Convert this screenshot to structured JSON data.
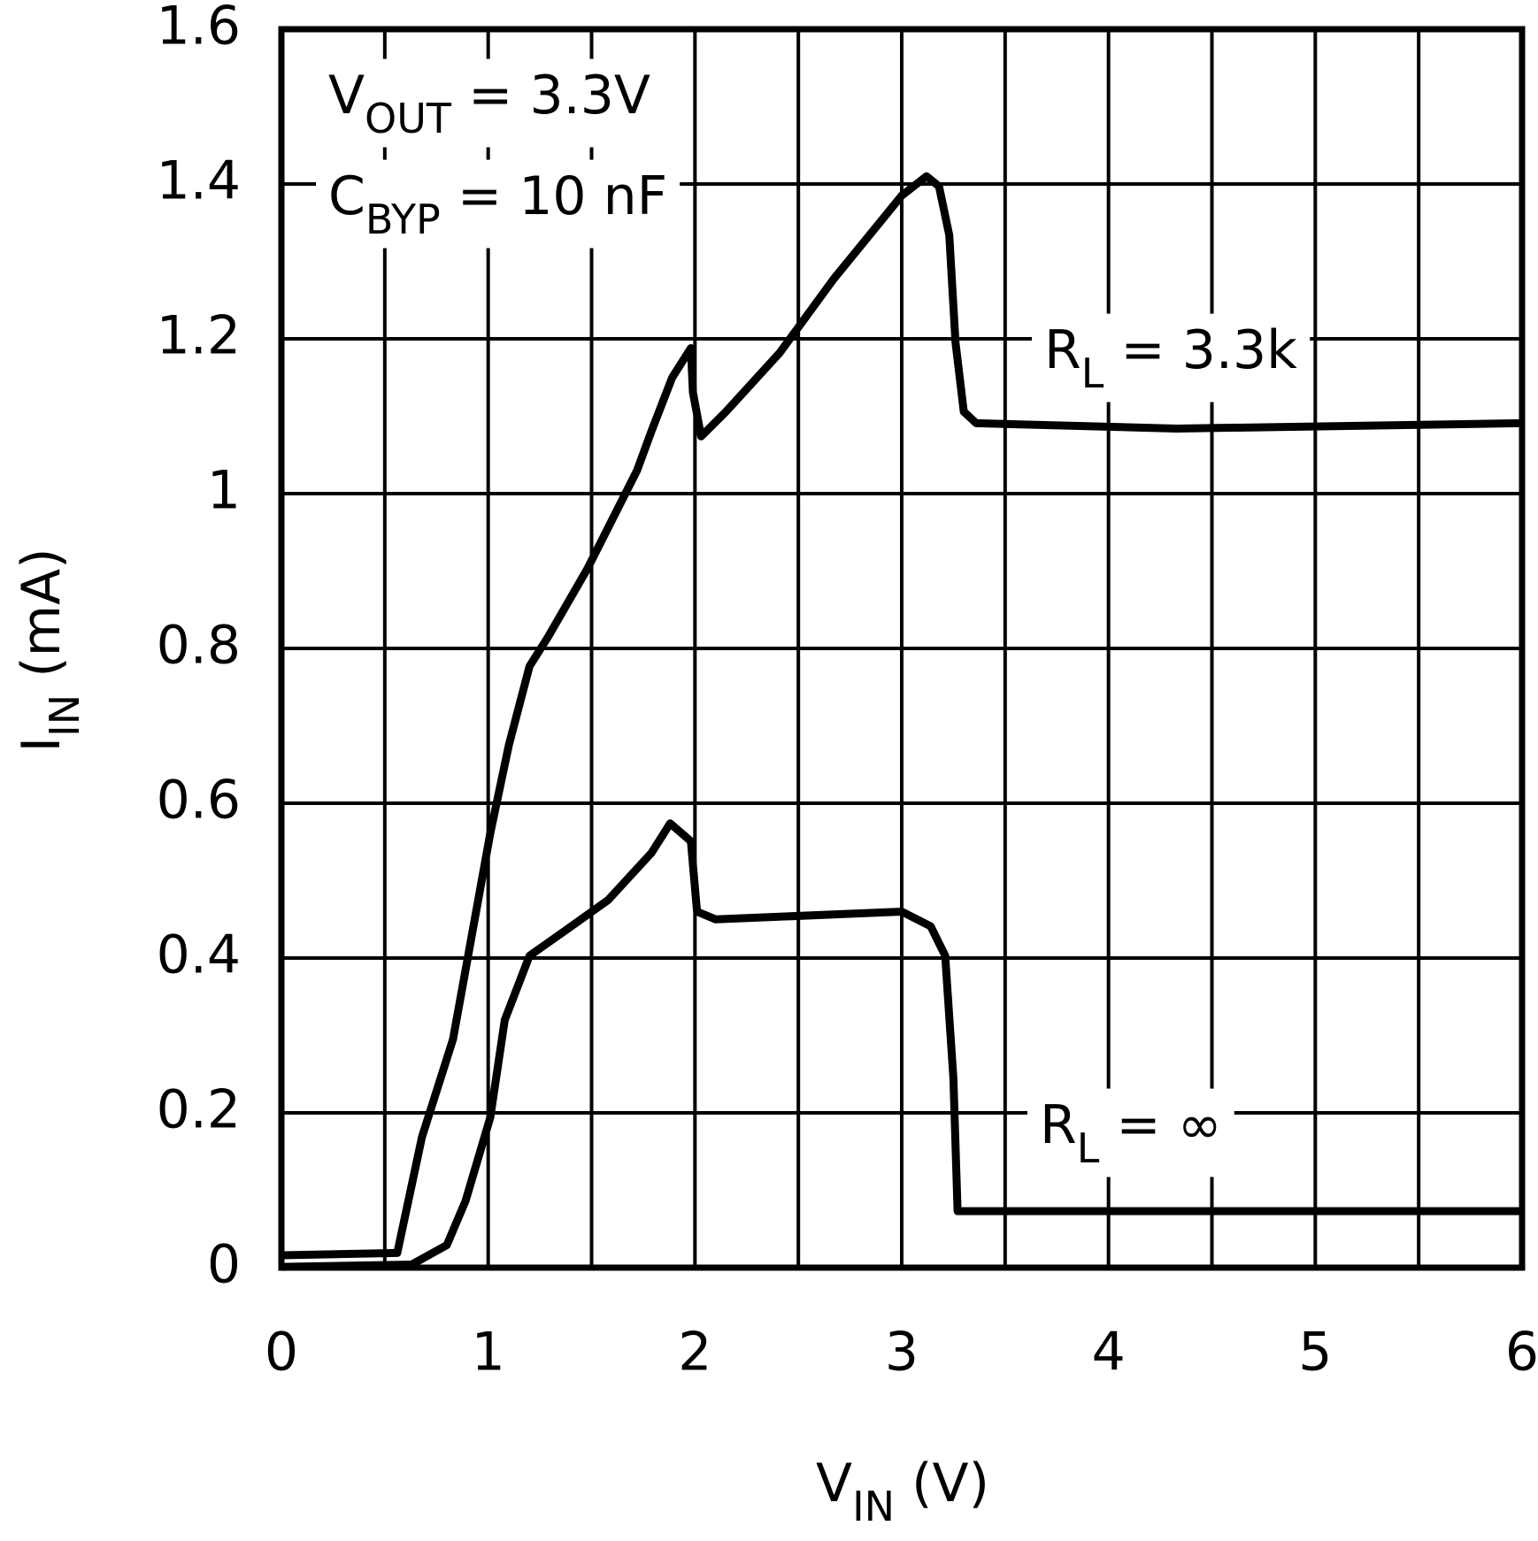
{
  "chart_data": {
    "type": "line",
    "xlabel": {
      "main": "V",
      "sub": "IN",
      "rest": "  (V)"
    },
    "ylabel": {
      "main": "I",
      "sub": "IN",
      "rest": "  (mA)"
    },
    "annotations": [
      {
        "main": "V",
        "sub": "OUT",
        "rest": " = 3.3V"
      },
      {
        "main": "C",
        "sub": "BYP",
        "rest": " = 10 nF"
      },
      {
        "main": "R",
        "sub": "L",
        "rest": " = 3.3k"
      },
      {
        "main": "R",
        "sub": "L",
        "rest": " = ∞"
      }
    ],
    "xlim": [
      0,
      6
    ],
    "ylim": [
      0,
      1.6
    ],
    "xticks": [
      0,
      1,
      2,
      3,
      4,
      5,
      6
    ],
    "xgrid": [
      0.5,
      1.5,
      2.5,
      3.5,
      4.5,
      5.5
    ],
    "yticks": [
      0,
      0.2,
      0.4,
      0.6,
      0.8,
      1,
      1.2,
      1.4,
      1.6
    ],
    "grid": true,
    "series": [
      {
        "color": "#000000",
        "x": [
          0,
          0.56,
          0.68,
          0.83,
          1.01,
          1.1,
          1.2,
          1.29,
          1.48,
          1.72,
          1.79,
          1.89,
          1.98,
          1.99,
          2.03,
          2.15,
          2.41,
          2.67,
          3.0,
          3.12,
          3.18,
          3.23,
          3.26,
          3.3,
          3.36,
          4.33,
          6.0
        ],
        "values": [
          0.016,
          0.019,
          0.169,
          0.295,
          0.561,
          0.675,
          0.777,
          0.815,
          0.903,
          1.03,
          1.081,
          1.15,
          1.188,
          1.131,
          1.074,
          1.106,
          1.182,
          1.277,
          1.385,
          1.41,
          1.397,
          1.334,
          1.195,
          1.106,
          1.091,
          1.084,
          1.091
        ]
      },
      {
        "color": "#000000",
        "x": [
          0,
          0.63,
          0.8,
          0.89,
          1.01,
          1.08,
          1.2,
          1.37,
          1.58,
          1.79,
          1.88,
          1.98,
          2.01,
          2.1,
          3.0,
          3.14,
          3.21,
          3.25,
          3.27,
          6.0
        ],
        "values": [
          0.001,
          0.004,
          0.029,
          0.086,
          0.194,
          0.32,
          0.403,
          0.435,
          0.475,
          0.536,
          0.574,
          0.551,
          0.46,
          0.45,
          0.46,
          0.441,
          0.403,
          0.244,
          0.073,
          0.073
        ]
      }
    ]
  }
}
